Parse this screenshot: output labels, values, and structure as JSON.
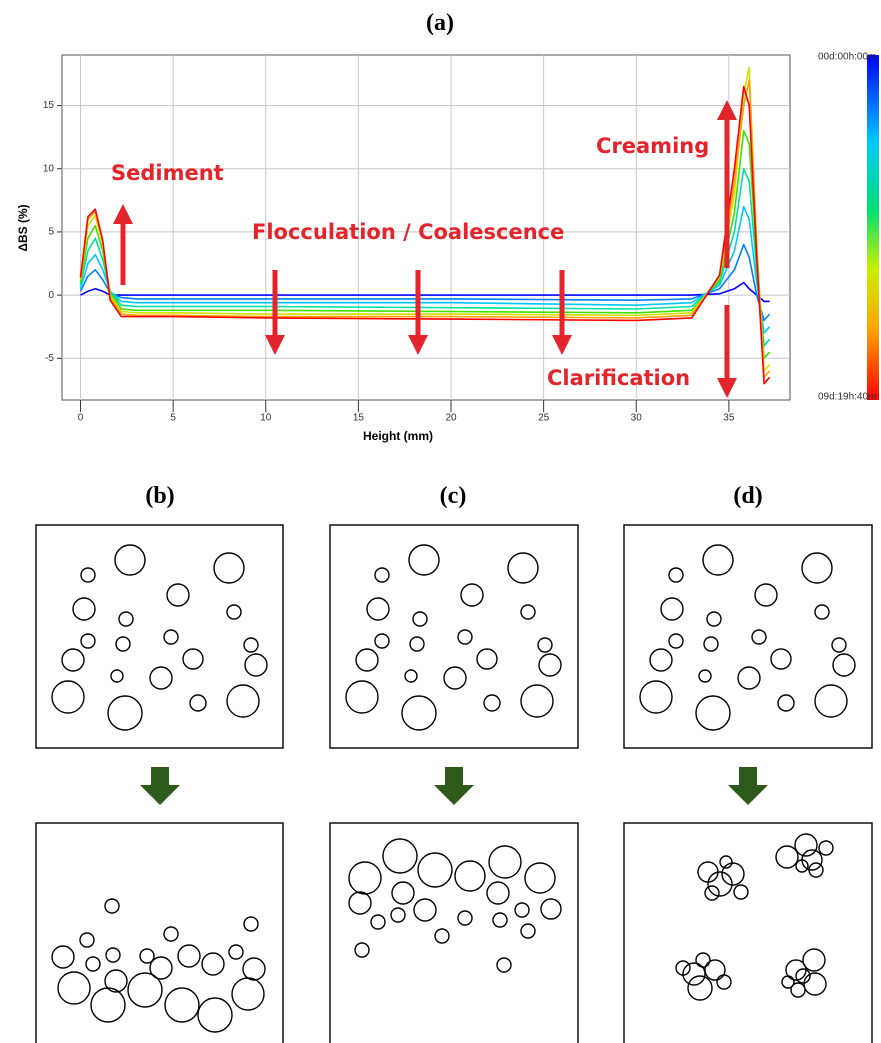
{
  "chart_data": {
    "type": "line",
    "title": "(a)",
    "xlabel": "Height (mm)",
    "ylabel": "ΔBS (%)",
    "xlim": [
      -1,
      38.3
    ],
    "ylim": [
      -8.3,
      19
    ],
    "xticks": [
      0,
      5,
      10,
      15,
      20,
      25,
      30,
      35
    ],
    "yticks": [
      -5,
      0,
      5,
      10,
      15
    ],
    "grid": true,
    "colorbar_labels": [
      "00d:00h:00m",
      "09d:19h:40m"
    ],
    "annotations": [
      "Sediment",
      "Flocculation / Coalescence",
      "Creaming",
      "Clarification"
    ],
    "x": [
      0,
      0.4,
      0.8,
      1.2,
      1.6,
      2.2,
      3,
      5,
      10,
      20,
      30,
      33,
      34.5,
      35.3,
      35.8,
      36.1,
      36.5,
      36.9,
      37.2
    ],
    "series": [
      {
        "color": "#0000ff",
        "values": [
          0,
          0.3,
          0.5,
          0.3,
          0,
          0,
          0,
          0,
          0,
          0,
          0,
          0,
          0.1,
          0.5,
          1,
          0.5,
          0,
          -0.5,
          -0.5
        ]
      },
      {
        "color": "#0080ff",
        "values": [
          0.3,
          1.5,
          2,
          1.2,
          0.2,
          -0.2,
          -0.3,
          -0.3,
          -0.3,
          -0.3,
          -0.4,
          -0.3,
          0.5,
          2,
          4,
          3,
          0,
          -2,
          -1.5
        ]
      },
      {
        "color": "#00c8ff",
        "values": [
          0.5,
          2.5,
          3.2,
          2,
          0.3,
          -0.5,
          -0.6,
          -0.6,
          -0.6,
          -0.6,
          -0.8,
          -0.6,
          0.8,
          3.5,
          7,
          6,
          1,
          -3,
          -2.5
        ]
      },
      {
        "color": "#00e0a0",
        "values": [
          0.8,
          3.5,
          4.5,
          2.8,
          0.3,
          -0.8,
          -0.9,
          -0.9,
          -0.9,
          -1,
          -1.1,
          -0.9,
          1,
          5,
          10,
          9,
          2,
          -4,
          -3.5
        ]
      },
      {
        "color": "#40e000",
        "values": [
          1,
          4.5,
          5.5,
          3.5,
          0.2,
          -1.1,
          -1.2,
          -1.2,
          -1.2,
          -1.3,
          -1.4,
          -1.2,
          1.2,
          6.5,
          13,
          12,
          3,
          -5,
          -4.5
        ]
      },
      {
        "color": "#d0e000",
        "values": [
          1.2,
          5.5,
          6.3,
          4,
          0,
          -1.3,
          -1.4,
          -1.4,
          -1.5,
          -1.5,
          -1.6,
          -1.4,
          1.4,
          8,
          16,
          18,
          4,
          -6,
          -5.5
        ]
      },
      {
        "color": "#ffa000",
        "values": [
          1.3,
          6,
          6.6,
          4.2,
          -0.2,
          -1.5,
          -1.6,
          -1.6,
          -1.7,
          -1.7,
          -1.8,
          -1.6,
          1.5,
          9,
          15,
          17,
          4,
          -6.5,
          -6
        ]
      },
      {
        "color": "#ff0000",
        "values": [
          1.4,
          6.2,
          6.8,
          4.3,
          -0.4,
          -1.7,
          -1.7,
          -1.7,
          -1.8,
          -1.9,
          -2,
          -1.8,
          1.6,
          10,
          16.5,
          15,
          3,
          -7,
          -6.5
        ]
      }
    ]
  },
  "diagrams": [
    {
      "label": "(b)"
    },
    {
      "label": "(c)"
    },
    {
      "label": "(d)"
    }
  ]
}
